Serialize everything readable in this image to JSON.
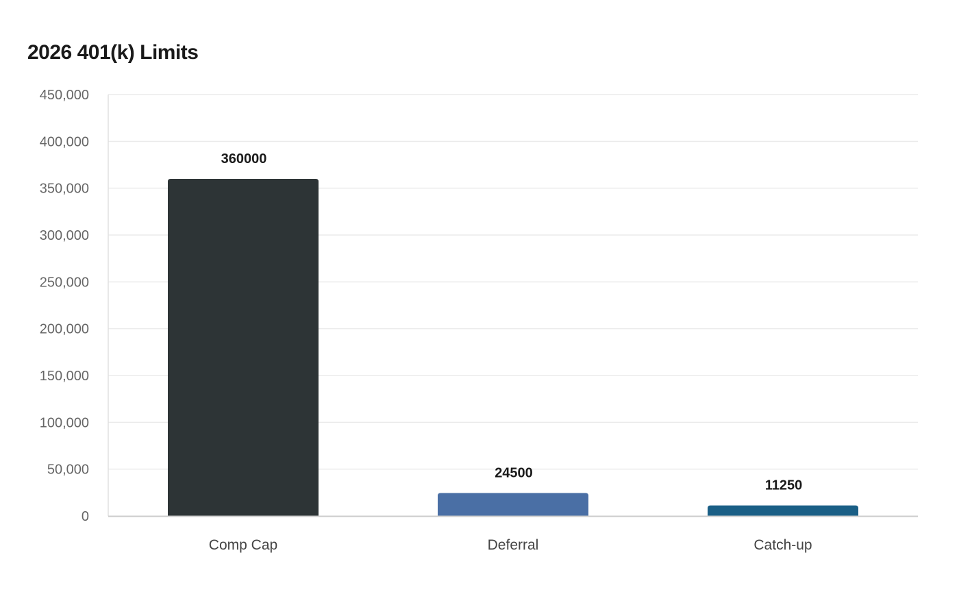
{
  "chart_data": {
    "type": "bar",
    "title": "2026 401(k) Limits",
    "categories": [
      "Comp Cap",
      "Deferral",
      "Catch-up"
    ],
    "values": [
      360000,
      24500,
      11250
    ],
    "colors": [
      "#2d3436",
      "#4a6fa5",
      "#1a5f86"
    ],
    "data_labels": [
      "360000",
      "24500",
      "11250"
    ],
    "xlabel": "",
    "ylabel": "",
    "ylim": [
      0,
      450000
    ],
    "yticks": [
      0,
      50000,
      100000,
      150000,
      200000,
      250000,
      300000,
      350000,
      400000,
      450000
    ],
    "ytick_labels": [
      "0",
      "50,000",
      "100,000",
      "150,000",
      "200,000",
      "250,000",
      "300,000",
      "350,000",
      "400,000",
      "450,000"
    ],
    "grid": true,
    "legend": "none"
  }
}
